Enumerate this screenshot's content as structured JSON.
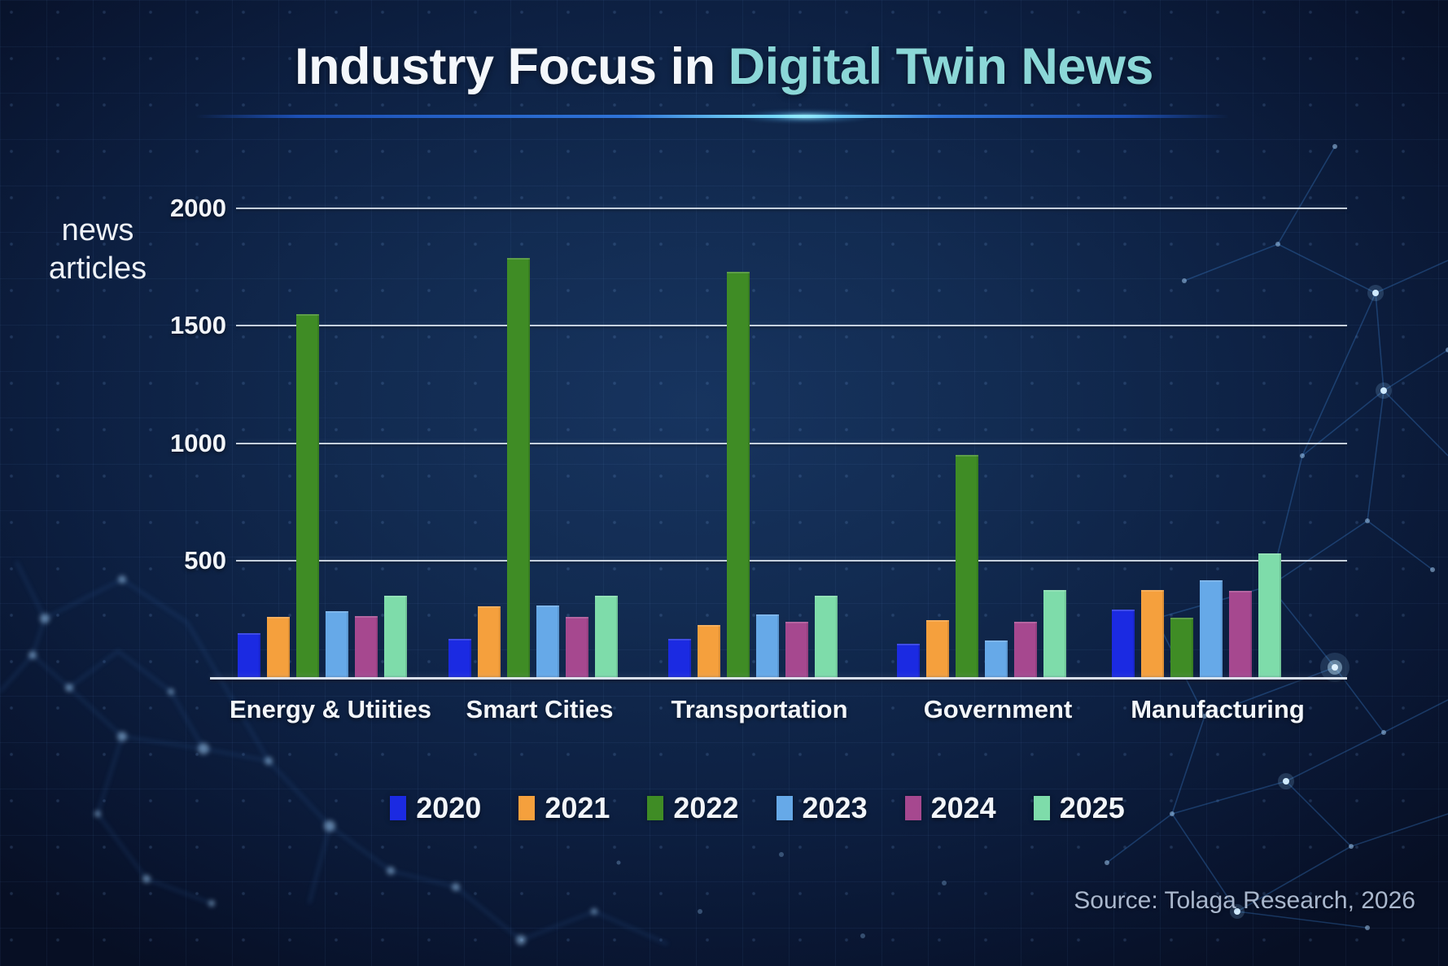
{
  "title": {
    "prefix": "Industry Focus in",
    "highlight": "Digital Twin News"
  },
  "y_axis": {
    "label_line1": "news",
    "label_line2": "articles",
    "tick_labels": [
      "2000",
      "1500",
      "1000",
      "500"
    ]
  },
  "x_axis": {
    "categories": [
      "Energy & Utiities",
      "Smart Cities",
      "Transportation",
      "Government",
      "Manufacturing"
    ]
  },
  "legend": {
    "items": [
      {
        "label": "2020",
        "color": "#1b2ae2"
      },
      {
        "label": "2021",
        "color": "#f5a03d"
      },
      {
        "label": "2022",
        "color": "#3f8c25"
      },
      {
        "label": "2023",
        "color": "#66a9e8"
      },
      {
        "label": "2024",
        "color": "#a6488f"
      },
      {
        "label": "2025",
        "color": "#7edcaa"
      }
    ]
  },
  "source_note": "Source: Tolaga Research, 2026",
  "colors": {
    "background": "#0d2042",
    "grid_line": "#dfe8f1",
    "title_text": "#f4f7fb",
    "title_highlight": "#8bd7d7",
    "label_text": "#f2f5f9",
    "source_text": "#a9b7cd"
  },
  "chart_data": {
    "type": "bar",
    "title": "Industry Focus in Digital Twin News",
    "ylabel": "news articles",
    "ylim": [
      0,
      2000
    ],
    "gridlines": [
      500,
      1000,
      1500,
      2000
    ],
    "grid": true,
    "legend_position": "bottom",
    "categories": [
      "Energy & Utiities",
      "Smart Cities",
      "Transportation",
      "Government",
      "Manufacturing"
    ],
    "series": [
      {
        "name": "2020",
        "color": "#1b2ae2",
        "values": [
          190,
          165,
          165,
          145,
          290
        ]
      },
      {
        "name": "2021",
        "color": "#f5a03d",
        "values": [
          260,
          305,
          225,
          245,
          375
        ]
      },
      {
        "name": "2022",
        "color": "#3f8c25",
        "values": [
          1550,
          1790,
          1730,
          950,
          255
        ]
      },
      {
        "name": "2023",
        "color": "#66a9e8",
        "values": [
          285,
          310,
          270,
          160,
          415
        ]
      },
      {
        "name": "2024",
        "color": "#a6488f",
        "values": [
          265,
          260,
          240,
          240,
          370
        ]
      },
      {
        "name": "2025",
        "color": "#7edcaa",
        "values": [
          350,
          350,
          350,
          375,
          530
        ]
      }
    ]
  }
}
